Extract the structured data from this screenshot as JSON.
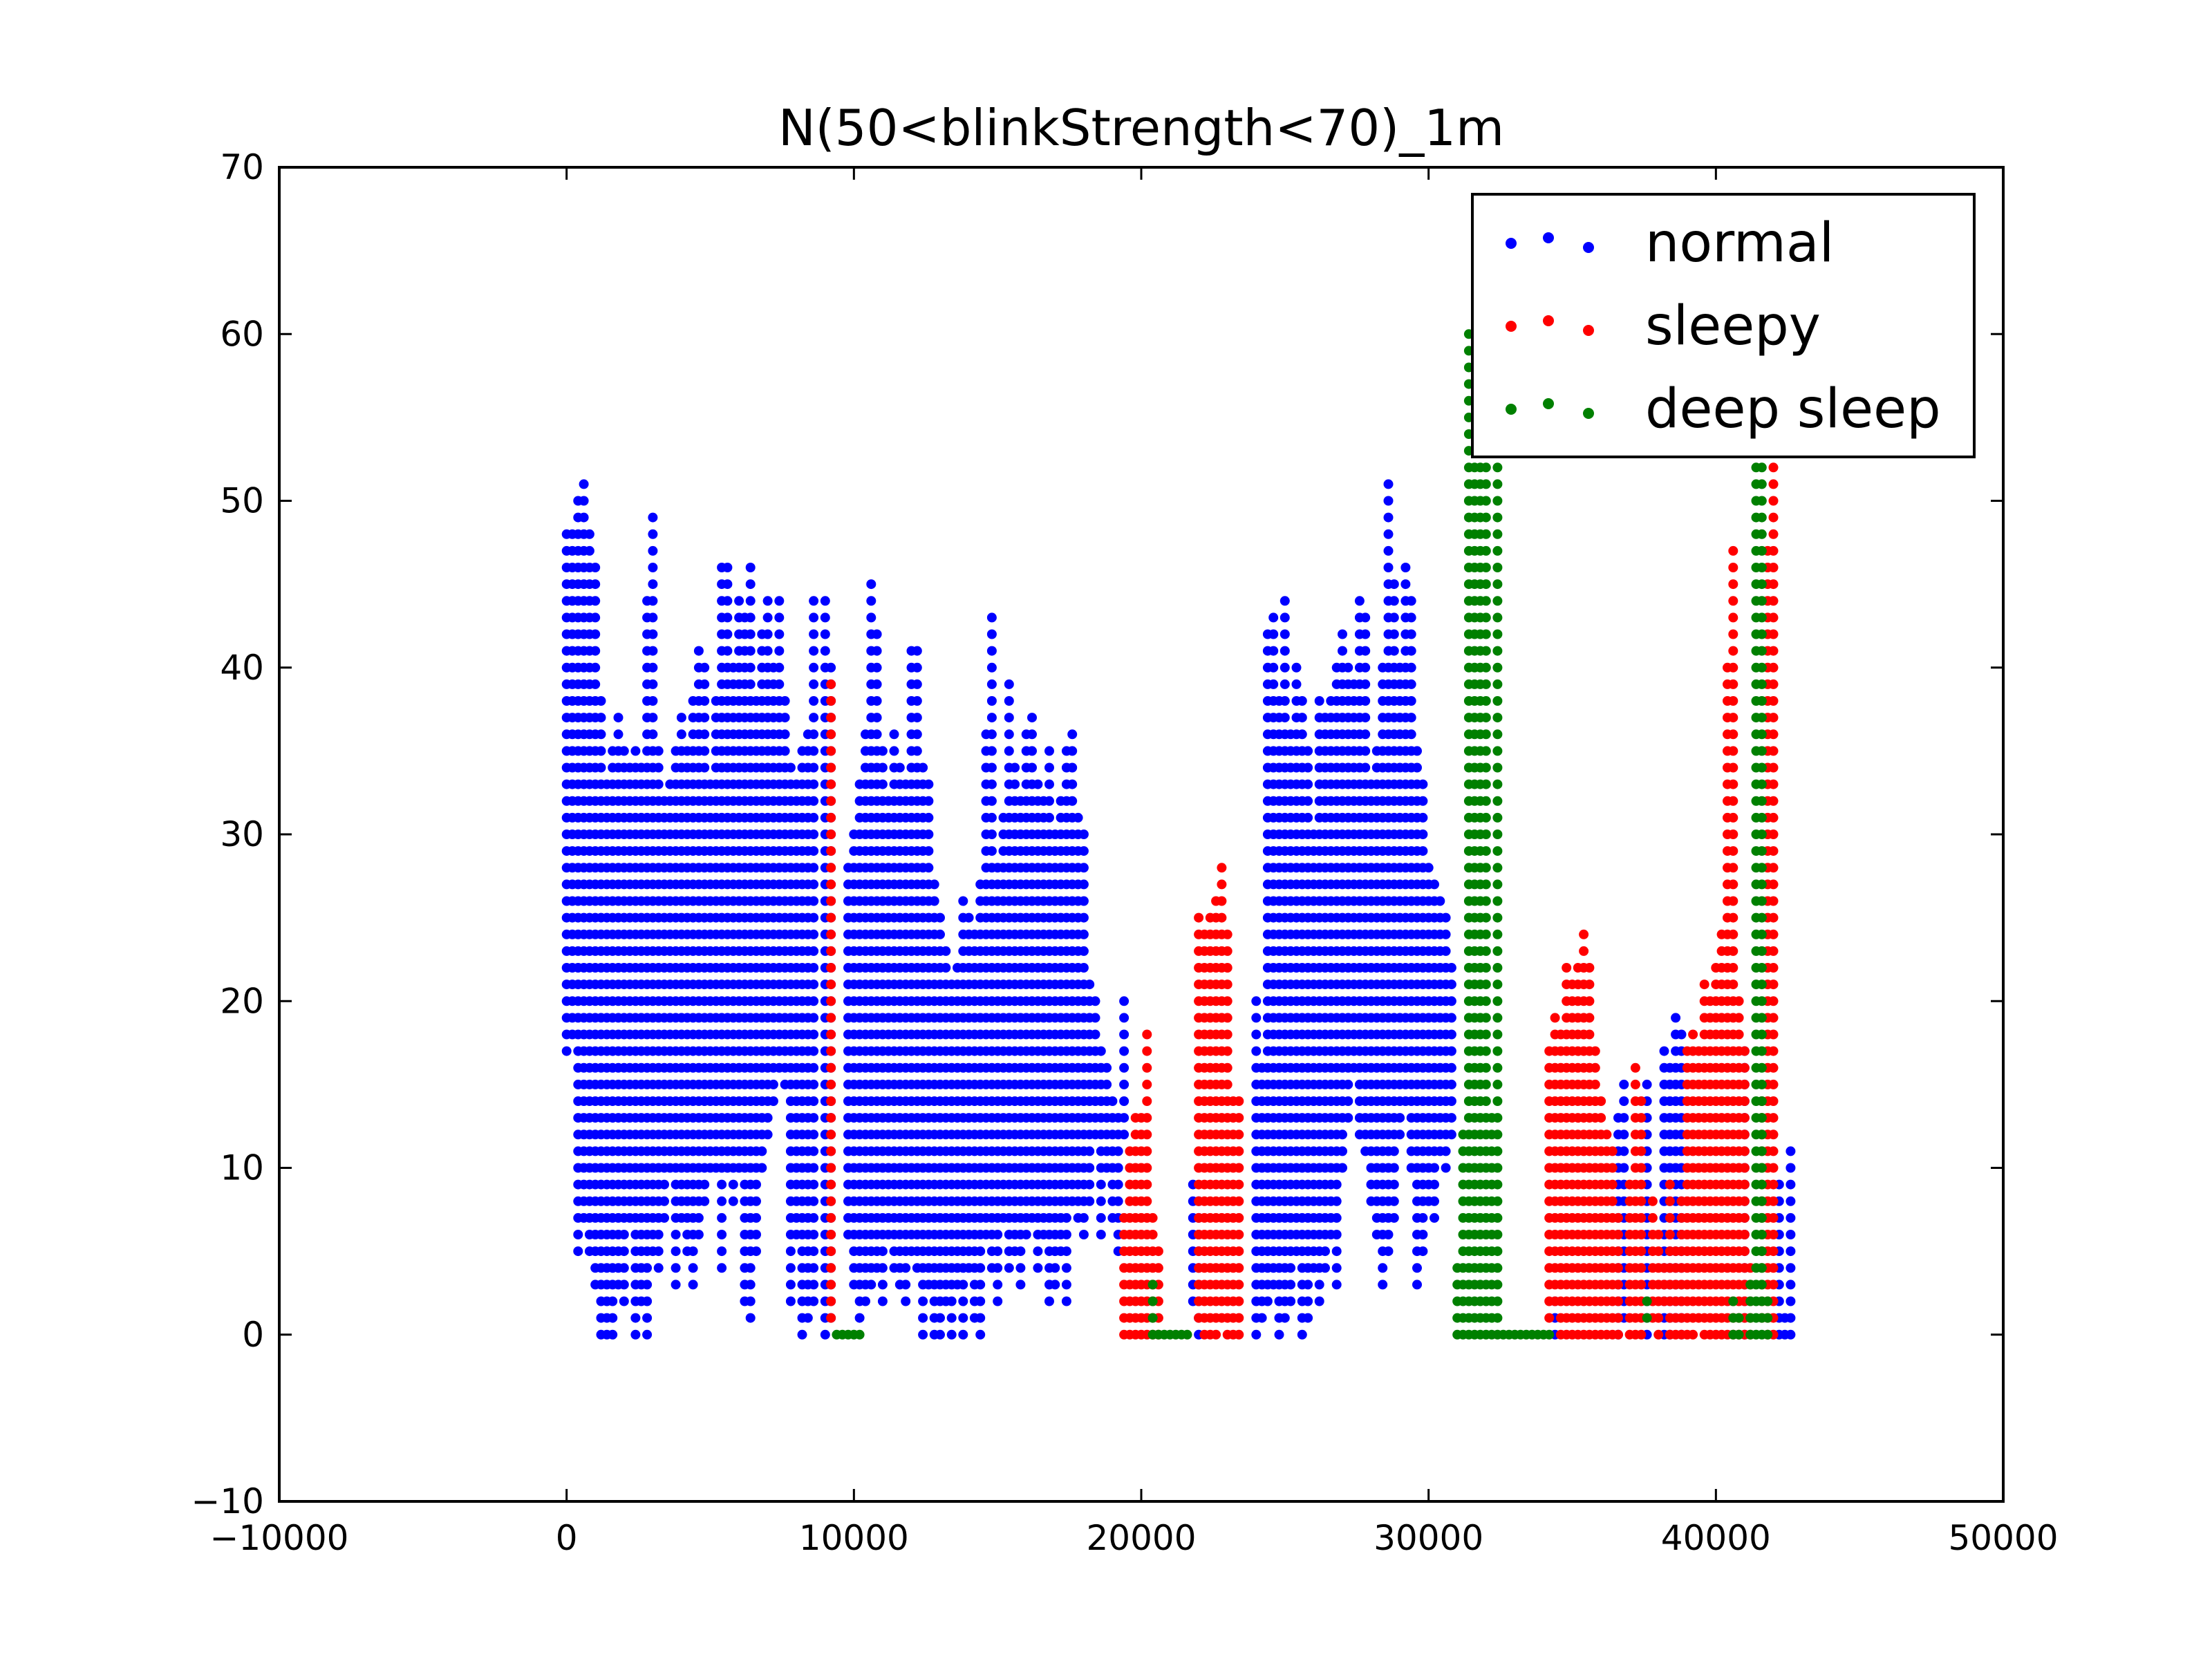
{
  "chart_data": {
    "type": "scatter",
    "title": "N(50<blinkStrength<70)_1m",
    "xlabel": "",
    "ylabel": "",
    "xlim": [
      -10000,
      50000
    ],
    "ylim": [
      -10,
      70
    ],
    "x_ticks": [
      -10000,
      0,
      10000,
      20000,
      30000,
      40000,
      50000
    ],
    "x_tick_labels": [
      "−10000",
      "0",
      "10000",
      "20000",
      "30000",
      "40000",
      "50000"
    ],
    "y_ticks": [
      -10,
      0,
      10,
      20,
      30,
      40,
      50,
      60,
      70
    ],
    "y_tick_labels": [
      "−10",
      "0",
      "10",
      "20",
      "30",
      "40",
      "50",
      "60",
      "70"
    ],
    "grid": false,
    "legend_position": "top-right",
    "y_step": 1,
    "series": [
      {
        "name": "normal",
        "color": "#0000ff",
        "columns": [
          [
            0,
            17,
            48
          ],
          [
            200,
            18,
            48
          ],
          [
            400,
            5,
            50
          ],
          [
            600,
            7,
            51
          ],
          [
            800,
            5,
            48
          ],
          [
            1000,
            3,
            46
          ],
          [
            1200,
            0,
            38
          ],
          [
            1400,
            0,
            33
          ],
          [
            1600,
            0,
            35
          ],
          [
            1800,
            3,
            37
          ],
          [
            2000,
            2,
            35
          ],
          [
            2200,
            7,
            34
          ],
          [
            2400,
            0,
            35
          ],
          [
            2600,
            2,
            34
          ],
          [
            2800,
            0,
            44
          ],
          [
            3000,
            5,
            49
          ],
          [
            3200,
            4,
            35
          ],
          [
            3400,
            7,
            32
          ],
          [
            3600,
            10,
            33
          ],
          [
            3800,
            3,
            35
          ],
          [
            4000,
            7,
            37
          ],
          [
            4200,
            5,
            35
          ],
          [
            4400,
            3,
            38
          ],
          [
            4600,
            6,
            41
          ],
          [
            4800,
            8,
            40
          ],
          [
            5000,
            10,
            33
          ],
          [
            5200,
            10,
            38
          ],
          [
            5400,
            4,
            46
          ],
          [
            5600,
            10,
            46
          ],
          [
            5800,
            8,
            40
          ],
          [
            6000,
            10,
            44
          ],
          [
            6200,
            2,
            43
          ],
          [
            6400,
            1,
            46
          ],
          [
            6600,
            5,
            38
          ],
          [
            6800,
            10,
            42
          ],
          [
            7000,
            12,
            44
          ],
          [
            7200,
            14,
            40
          ],
          [
            7400,
            16,
            44
          ],
          [
            7600,
            15,
            38
          ],
          [
            7800,
            2,
            34
          ],
          [
            8000,
            6,
            33
          ],
          [
            8200,
            0,
            35
          ],
          [
            8400,
            1,
            36
          ],
          [
            8600,
            2,
            44
          ],
          [
            9000,
            0,
            44
          ],
          [
            9200,
            1,
            40
          ],
          [
            9800,
            6,
            28
          ],
          [
            10000,
            3,
            30
          ],
          [
            10200,
            1,
            33
          ],
          [
            10400,
            2,
            36
          ],
          [
            10600,
            3,
            45
          ],
          [
            10800,
            4,
            42
          ],
          [
            11000,
            2,
            35
          ],
          [
            11200,
            6,
            32
          ],
          [
            11400,
            4,
            36
          ],
          [
            11600,
            3,
            34
          ],
          [
            11800,
            2,
            33
          ],
          [
            12000,
            5,
            41
          ],
          [
            12200,
            4,
            41
          ],
          [
            12400,
            0,
            34
          ],
          [
            12600,
            3,
            33
          ],
          [
            12800,
            0,
            27
          ],
          [
            13000,
            0,
            25
          ],
          [
            13200,
            2,
            23
          ],
          [
            13400,
            0,
            21
          ],
          [
            13600,
            3,
            22
          ],
          [
            13800,
            0,
            26
          ],
          [
            14000,
            4,
            25
          ],
          [
            14200,
            1,
            24
          ],
          [
            14400,
            0,
            27
          ],
          [
            14600,
            6,
            36
          ],
          [
            14800,
            4,
            43
          ],
          [
            15000,
            2,
            28
          ],
          [
            15200,
            7,
            31
          ],
          [
            15400,
            4,
            39
          ],
          [
            15600,
            5,
            34
          ],
          [
            15800,
            3,
            32
          ],
          [
            16000,
            6,
            36
          ],
          [
            16200,
            7,
            37
          ],
          [
            16400,
            4,
            33
          ],
          [
            16600,
            6,
            32
          ],
          [
            16800,
            2,
            35
          ],
          [
            17000,
            3,
            30
          ],
          [
            17200,
            5,
            32
          ],
          [
            17400,
            2,
            35
          ],
          [
            17600,
            8,
            36
          ],
          [
            17800,
            7,
            31
          ],
          [
            18000,
            6,
            30
          ],
          [
            18200,
            8,
            21
          ],
          [
            18400,
            12,
            20
          ],
          [
            18600,
            6,
            17
          ],
          [
            18800,
            10,
            16
          ],
          [
            19000,
            7,
            14
          ],
          [
            19200,
            5,
            13
          ],
          [
            19400,
            12,
            20
          ],
          [
            21800,
            2,
            9
          ],
          [
            22000,
            0,
            8
          ],
          [
            24000,
            0,
            20
          ],
          [
            24200,
            1,
            16
          ],
          [
            24400,
            2,
            42
          ],
          [
            24600,
            3,
            43
          ],
          [
            24800,
            0,
            38
          ],
          [
            25000,
            1,
            44
          ],
          [
            25200,
            2,
            36
          ],
          [
            25400,
            5,
            40
          ],
          [
            25600,
            0,
            38
          ],
          [
            25800,
            1,
            35
          ],
          [
            26000,
            4,
            30
          ],
          [
            26200,
            2,
            38
          ],
          [
            26400,
            4,
            37
          ],
          [
            26600,
            6,
            38
          ],
          [
            26800,
            3,
            40
          ],
          [
            27000,
            10,
            42
          ],
          [
            27200,
            13,
            40
          ],
          [
            27400,
            16,
            39
          ],
          [
            27600,
            12,
            44
          ],
          [
            27800,
            11,
            43
          ],
          [
            28000,
            8,
            33
          ],
          [
            28200,
            6,
            35
          ],
          [
            28400,
            3,
            40
          ],
          [
            28600,
            5,
            51
          ],
          [
            28800,
            7,
            45
          ],
          [
            29000,
            12,
            40
          ],
          [
            29200,
            14,
            46
          ],
          [
            29400,
            10,
            44
          ],
          [
            29600,
            3,
            35
          ],
          [
            29800,
            5,
            33
          ],
          [
            30000,
            8,
            28
          ],
          [
            30200,
            7,
            27
          ],
          [
            30400,
            11,
            26
          ],
          [
            30600,
            10,
            25
          ],
          [
            30800,
            12,
            22
          ],
          [
            34400,
            0,
            2
          ],
          [
            36600,
            0,
            13
          ],
          [
            36800,
            1,
            15
          ],
          [
            37600,
            0,
            15
          ],
          [
            38200,
            0,
            17
          ],
          [
            38400,
            0,
            16
          ],
          [
            38600,
            1,
            19
          ],
          [
            38800,
            0,
            18
          ],
          [
            41000,
            0,
            17
          ],
          [
            42200,
            0,
            9
          ],
          [
            42400,
            0,
            1
          ],
          [
            42600,
            0,
            11
          ]
        ]
      },
      {
        "name": "sleepy",
        "color": "#ff0000",
        "columns": [
          [
            9200,
            1,
            39
          ],
          [
            19400,
            0,
            7
          ],
          [
            19600,
            0,
            11
          ],
          [
            19800,
            0,
            13
          ],
          [
            20000,
            0,
            13
          ],
          [
            20200,
            0,
            18
          ],
          [
            20400,
            0,
            7
          ],
          [
            20600,
            0,
            5
          ],
          [
            22000,
            1,
            25
          ],
          [
            22200,
            0,
            24
          ],
          [
            22400,
            0,
            25
          ],
          [
            22600,
            0,
            26
          ],
          [
            22800,
            1,
            28
          ],
          [
            23000,
            0,
            24
          ],
          [
            23200,
            0,
            14
          ],
          [
            23400,
            0,
            14
          ],
          [
            34200,
            1,
            17
          ],
          [
            34400,
            2,
            19
          ],
          [
            34600,
            0,
            18
          ],
          [
            34800,
            0,
            22
          ],
          [
            35000,
            0,
            21
          ],
          [
            35200,
            0,
            22
          ],
          [
            35400,
            0,
            24
          ],
          [
            35600,
            0,
            22
          ],
          [
            35800,
            0,
            17
          ],
          [
            36000,
            0,
            14
          ],
          [
            36200,
            0,
            12
          ],
          [
            36400,
            0,
            11
          ],
          [
            36600,
            0,
            7
          ],
          [
            37000,
            0,
            9
          ],
          [
            37200,
            0,
            16
          ],
          [
            37400,
            0,
            14
          ],
          [
            37800,
            1,
            8
          ],
          [
            38000,
            0,
            6
          ],
          [
            38200,
            2,
            4
          ],
          [
            38400,
            0,
            9
          ],
          [
            38600,
            0,
            5
          ],
          [
            38800,
            0,
            8
          ],
          [
            39000,
            0,
            17
          ],
          [
            39200,
            0,
            18
          ],
          [
            39400,
            1,
            17
          ],
          [
            39600,
            0,
            21
          ],
          [
            39800,
            0,
            20
          ],
          [
            40000,
            0,
            22
          ],
          [
            40200,
            0,
            24
          ],
          [
            40400,
            0,
            40
          ],
          [
            40600,
            0,
            47
          ],
          [
            40800,
            0,
            20
          ],
          [
            41000,
            0,
            17
          ],
          [
            41200,
            0,
            4
          ],
          [
            41600,
            1,
            14
          ],
          [
            41800,
            0,
            47
          ],
          [
            42000,
            0,
            52
          ]
        ]
      },
      {
        "name": "deep sleep",
        "color": "#008000",
        "columns": [
          [
            9400,
            0,
            0
          ],
          [
            9600,
            0,
            0
          ],
          [
            9800,
            0,
            0
          ],
          [
            10000,
            0,
            0
          ],
          [
            10200,
            0,
            0
          ],
          [
            20400,
            0,
            3
          ],
          [
            20600,
            0,
            0
          ],
          [
            20800,
            0,
            0
          ],
          [
            21000,
            0,
            0
          ],
          [
            21200,
            0,
            0
          ],
          [
            21400,
            0,
            0
          ],
          [
            21600,
            0,
            0
          ],
          [
            31000,
            0,
            4
          ],
          [
            31200,
            0,
            12
          ],
          [
            31400,
            0,
            60
          ],
          [
            31600,
            0,
            55
          ],
          [
            31800,
            0,
            52
          ],
          [
            32000,
            0,
            52
          ],
          [
            32200,
            0,
            13
          ],
          [
            32400,
            0,
            56
          ],
          [
            32600,
            0,
            0
          ],
          [
            32800,
            0,
            0
          ],
          [
            33000,
            0,
            0
          ],
          [
            33200,
            0,
            0
          ],
          [
            33400,
            0,
            0
          ],
          [
            33600,
            0,
            0
          ],
          [
            33800,
            0,
            0
          ],
          [
            34000,
            0,
            0
          ],
          [
            34200,
            0,
            0
          ],
          [
            37600,
            1,
            2
          ],
          [
            40600,
            0,
            2
          ],
          [
            40800,
            0,
            1
          ],
          [
            41200,
            0,
            3
          ],
          [
            41400,
            0,
            52
          ],
          [
            41600,
            0,
            55
          ],
          [
            41800,
            0,
            2
          ]
        ]
      }
    ]
  }
}
